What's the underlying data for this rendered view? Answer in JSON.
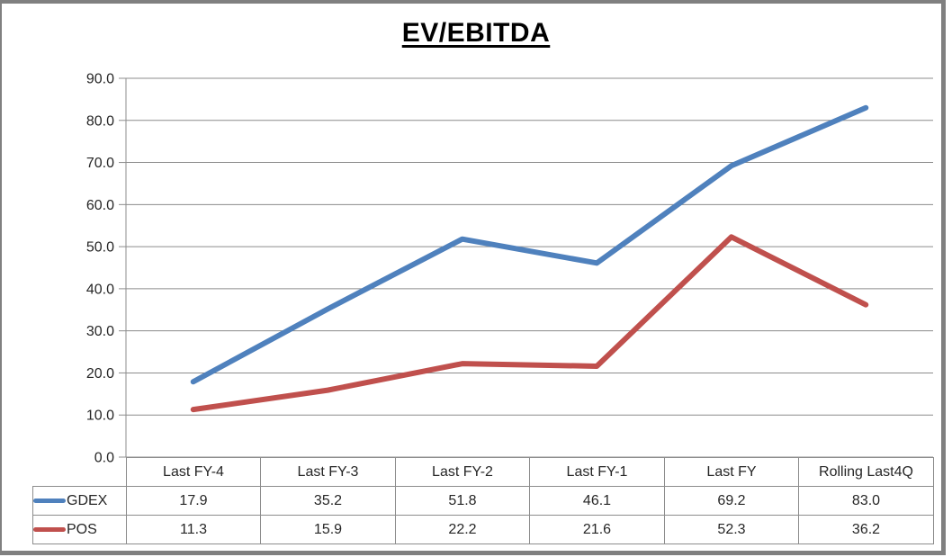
{
  "chart_data": {
    "type": "line",
    "title": "EV/EBITDA",
    "categories": [
      "Last FY-4",
      "Last FY-3",
      "Last FY-2",
      "Last FY-1",
      "Last FY",
      "Rolling Last4Q"
    ],
    "series": [
      {
        "name": "GDEX",
        "color": "#4F81BD",
        "values": [
          17.9,
          35.2,
          51.8,
          46.1,
          69.2,
          83.0
        ],
        "display": [
          "17.9",
          "35.2",
          "51.8",
          "46.1",
          "69.2",
          "83.0"
        ]
      },
      {
        "name": "POS",
        "color": "#C0504D",
        "values": [
          11.3,
          15.9,
          22.2,
          21.6,
          52.3,
          36.2
        ],
        "display": [
          "11.3",
          "15.9",
          "22.2",
          "21.6",
          "52.3",
          "36.2"
        ]
      }
    ],
    "xlabel": "",
    "ylabel": "",
    "ylim": [
      0,
      90
    ],
    "ytick_step": 10,
    "yticks": [
      "0.0",
      "10.0",
      "20.0",
      "30.0",
      "40.0",
      "50.0",
      "60.0",
      "70.0",
      "80.0",
      "90.0"
    ],
    "grid": true,
    "gridline_color": "#8c8c8c",
    "axis_color": "#8c8c8c",
    "tick_label_color": "#262626",
    "legend_position": "table-left",
    "line_width": 6
  }
}
